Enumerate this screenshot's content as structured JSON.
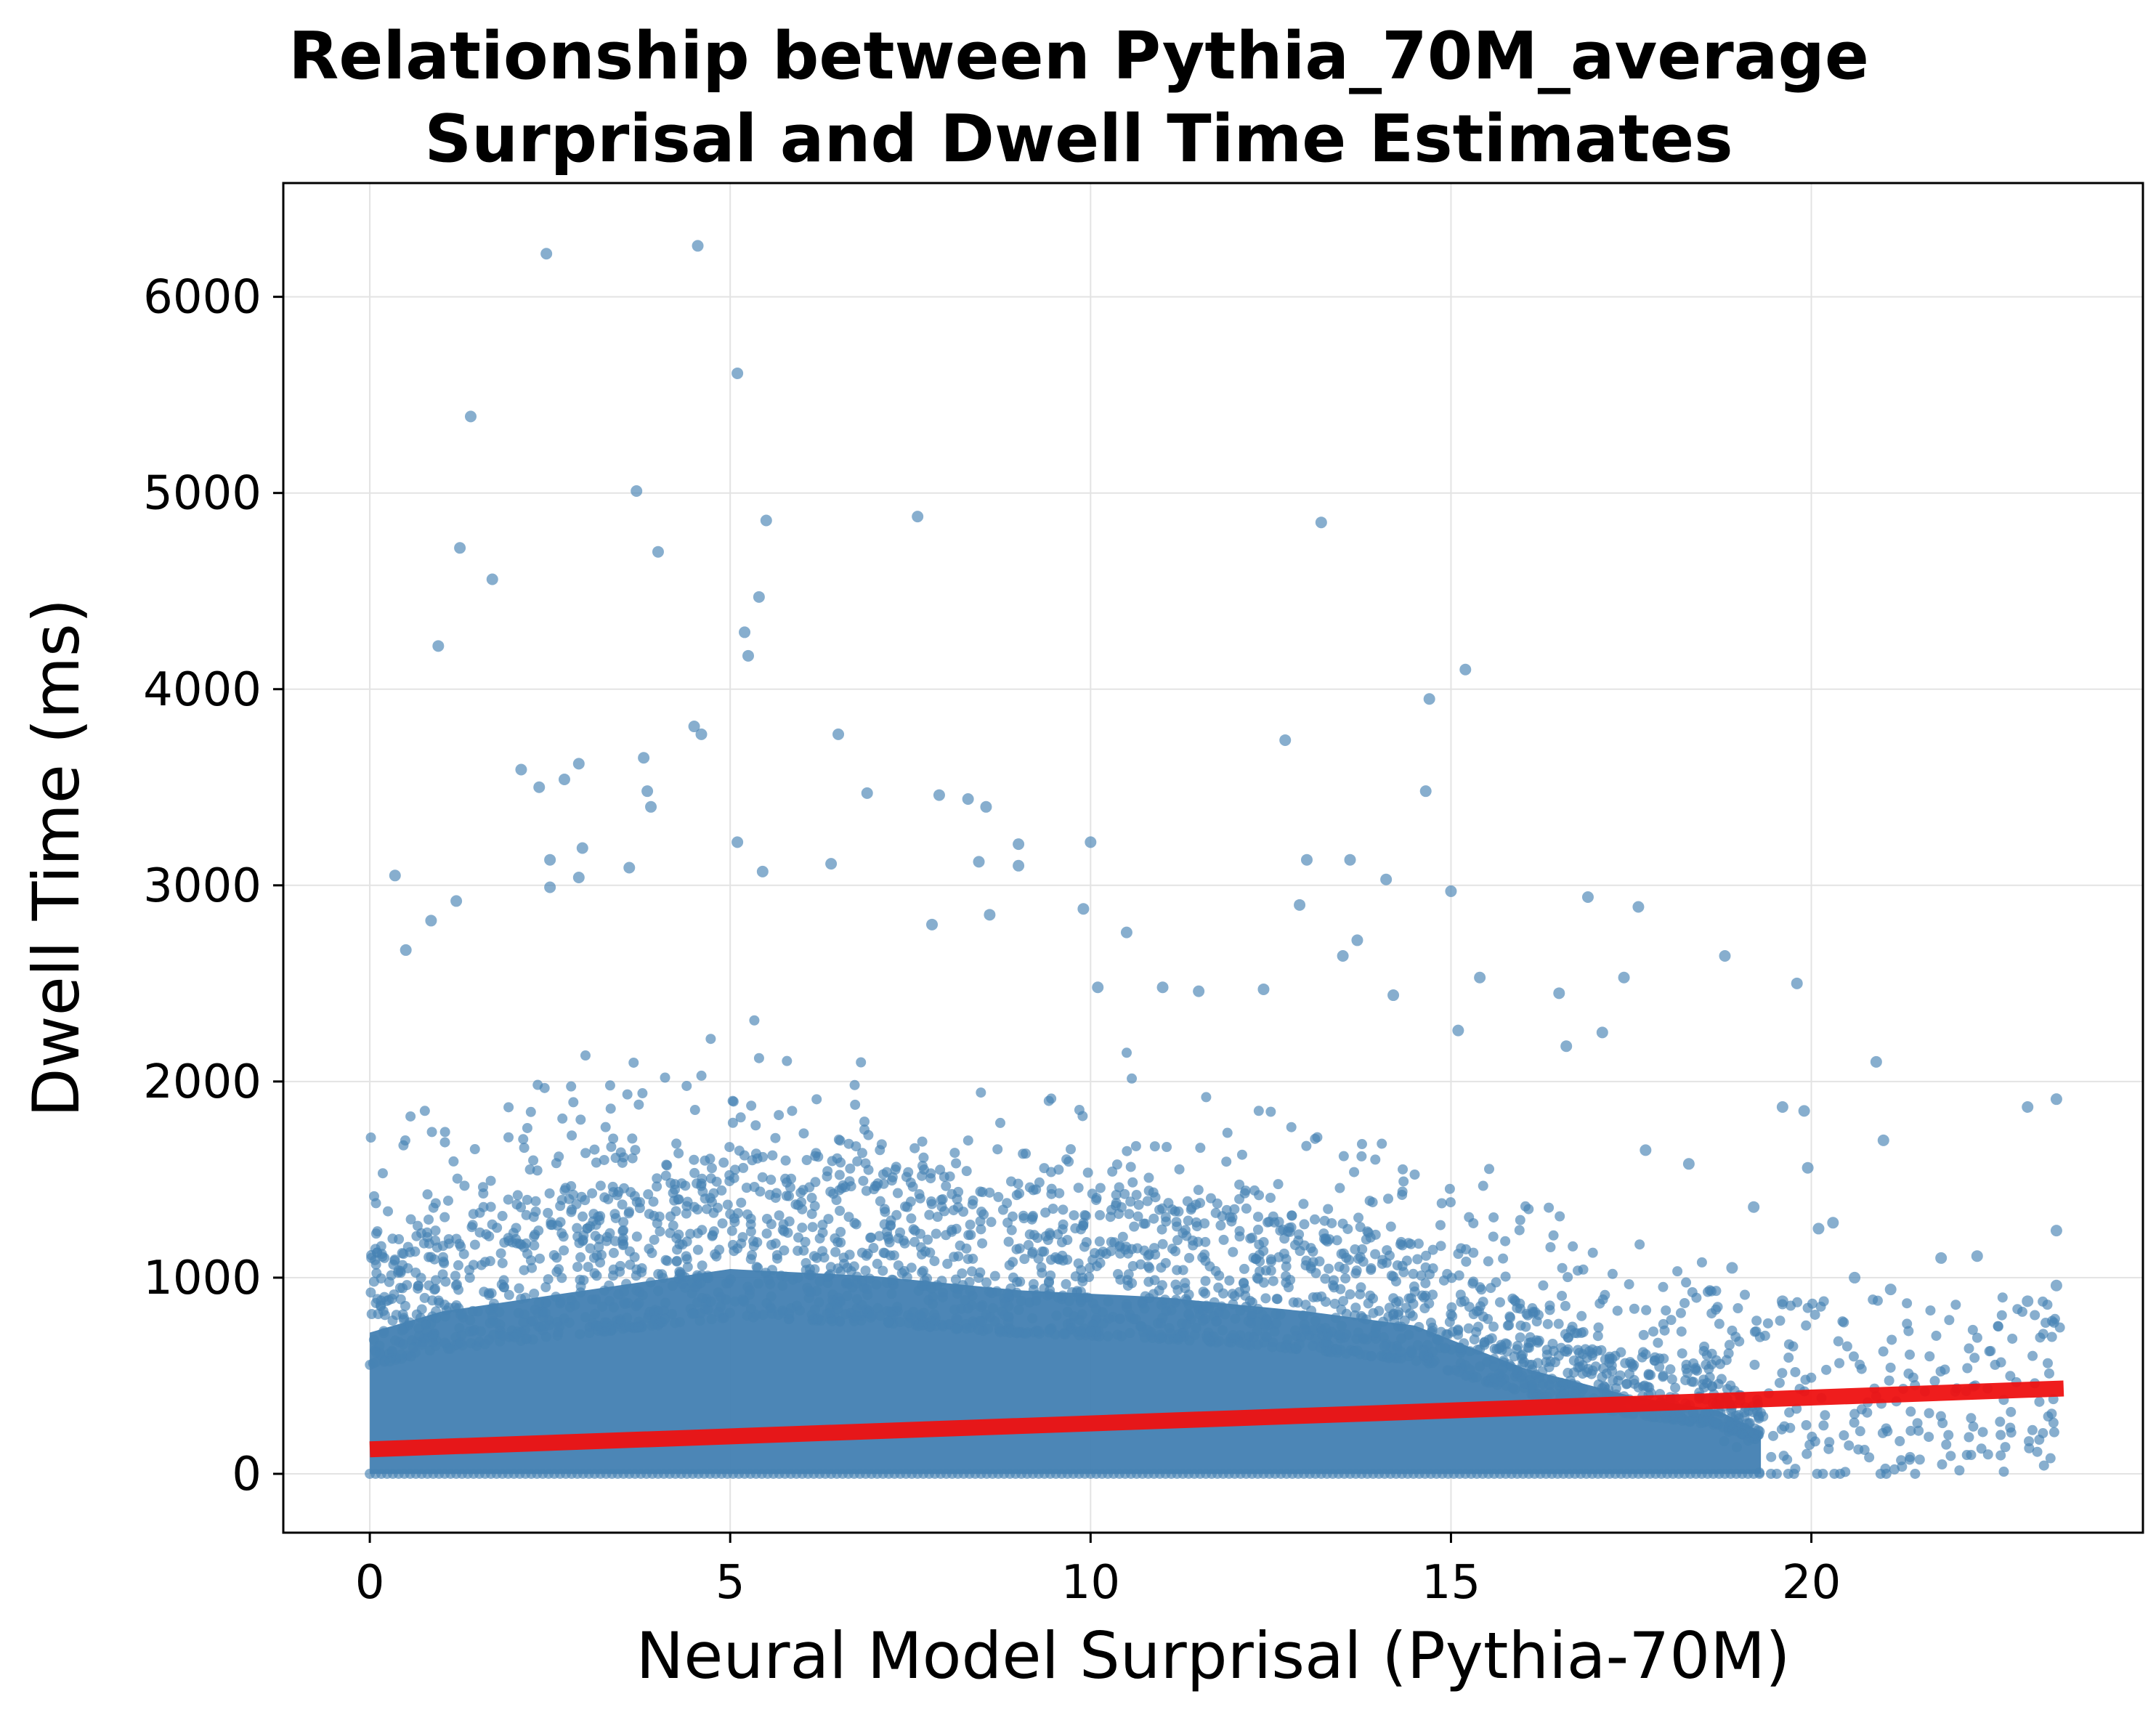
{
  "chart_data": {
    "type": "scatter",
    "title_lines": [
      "Relationship between Pythia_70M_average",
      "Surprisal and Dwell Time Estimates"
    ],
    "xlabel": "Neural Model Surprisal (Pythia-70M)",
    "ylabel": "Dwell Time (ms)",
    "xlim": [
      -1.2,
      24.6
    ],
    "ylim": [
      -300,
      6580
    ],
    "x_ticks": [
      0,
      5,
      10,
      15,
      20
    ],
    "y_ticks": [
      0,
      1000,
      2000,
      3000,
      4000,
      5000,
      6000
    ],
    "grid": true,
    "point_color": "#4682b4",
    "point_opacity": 0.65,
    "regression_color": "#ee1111",
    "regression_line": {
      "x": [
        0,
        23.5
      ],
      "y": [
        125,
        435
      ]
    },
    "dense_region": {
      "comment_free_band": true,
      "envelope": [
        {
          "x": 0,
          "y": 1000
        },
        {
          "x": 1,
          "y": 1150
        },
        {
          "x": 3,
          "y": 1300
        },
        {
          "x": 5,
          "y": 1450
        },
        {
          "x": 7,
          "y": 1400
        },
        {
          "x": 9,
          "y": 1300
        },
        {
          "x": 11,
          "y": 1250
        },
        {
          "x": 13,
          "y": 1150
        },
        {
          "x": 14.5,
          "y": 1050
        },
        {
          "x": 16,
          "y": 750
        },
        {
          "x": 17.5,
          "y": 550
        },
        {
          "x": 18.7,
          "y": 450
        },
        {
          "x": 19.3,
          "y": 300
        }
      ]
    },
    "outliers": [
      {
        "x": 2.45,
        "y": 6220
      },
      {
        "x": 4.55,
        "y": 6260
      },
      {
        "x": 5.1,
        "y": 5610
      },
      {
        "x": 1.4,
        "y": 5390
      },
      {
        "x": 3.7,
        "y": 5010
      },
      {
        "x": 5.5,
        "y": 4860
      },
      {
        "x": 7.6,
        "y": 4880
      },
      {
        "x": 13.2,
        "y": 4850
      },
      {
        "x": 1.25,
        "y": 4720
      },
      {
        "x": 4.0,
        "y": 4700
      },
      {
        "x": 1.7,
        "y": 4560
      },
      {
        "x": 5.4,
        "y": 4470
      },
      {
        "x": 5.2,
        "y": 4290
      },
      {
        "x": 0.95,
        "y": 4220
      },
      {
        "x": 5.25,
        "y": 4170
      },
      {
        "x": 15.2,
        "y": 4100
      },
      {
        "x": 14.7,
        "y": 3950
      },
      {
        "x": 4.5,
        "y": 3810
      },
      {
        "x": 4.6,
        "y": 3770
      },
      {
        "x": 6.5,
        "y": 3770
      },
      {
        "x": 12.7,
        "y": 3740
      },
      {
        "x": 3.8,
        "y": 3650
      },
      {
        "x": 2.9,
        "y": 3620
      },
      {
        "x": 2.1,
        "y": 3590
      },
      {
        "x": 2.7,
        "y": 3540
      },
      {
        "x": 2.35,
        "y": 3500
      },
      {
        "x": 3.85,
        "y": 3480
      },
      {
        "x": 14.65,
        "y": 3480
      },
      {
        "x": 6.9,
        "y": 3470
      },
      {
        "x": 7.9,
        "y": 3460
      },
      {
        "x": 8.3,
        "y": 3440
      },
      {
        "x": 8.55,
        "y": 3400
      },
      {
        "x": 3.9,
        "y": 3400
      },
      {
        "x": 5.1,
        "y": 3220
      },
      {
        "x": 10.0,
        "y": 3220
      },
      {
        "x": 9.0,
        "y": 3210
      },
      {
        "x": 2.95,
        "y": 3190
      },
      {
        "x": 2.5,
        "y": 3130
      },
      {
        "x": 13.0,
        "y": 3130
      },
      {
        "x": 13.6,
        "y": 3130
      },
      {
        "x": 8.45,
        "y": 3120
      },
      {
        "x": 6.4,
        "y": 3110
      },
      {
        "x": 9.0,
        "y": 3100
      },
      {
        "x": 3.6,
        "y": 3090
      },
      {
        "x": 5.45,
        "y": 3070
      },
      {
        "x": 0.35,
        "y": 3050
      },
      {
        "x": 2.9,
        "y": 3040
      },
      {
        "x": 14.1,
        "y": 3030
      },
      {
        "x": 2.5,
        "y": 2990
      },
      {
        "x": 15.0,
        "y": 2970
      },
      {
        "x": 16.9,
        "y": 2940
      },
      {
        "x": 1.2,
        "y": 2920
      },
      {
        "x": 12.9,
        "y": 2900
      },
      {
        "x": 17.6,
        "y": 2890
      },
      {
        "x": 9.9,
        "y": 2880
      },
      {
        "x": 8.6,
        "y": 2850
      },
      {
        "x": 0.85,
        "y": 2820
      },
      {
        "x": 7.8,
        "y": 2800
      },
      {
        "x": 13.7,
        "y": 2720
      },
      {
        "x": 10.5,
        "y": 2760
      },
      {
        "x": 0.5,
        "y": 2670
      },
      {
        "x": 18.8,
        "y": 2640
      },
      {
        "x": 13.5,
        "y": 2640
      },
      {
        "x": 15.4,
        "y": 2530
      },
      {
        "x": 17.4,
        "y": 2530
      },
      {
        "x": 19.8,
        "y": 2500
      },
      {
        "x": 16.5,
        "y": 2450
      },
      {
        "x": 14.2,
        "y": 2440
      },
      {
        "x": 12.4,
        "y": 2470
      },
      {
        "x": 11.5,
        "y": 2460
      },
      {
        "x": 11.0,
        "y": 2480
      },
      {
        "x": 10.1,
        "y": 2480
      },
      {
        "x": 15.1,
        "y": 2260
      },
      {
        "x": 17.1,
        "y": 2250
      },
      {
        "x": 16.6,
        "y": 2180
      },
      {
        "x": 20.9,
        "y": 2100
      },
      {
        "x": 19.6,
        "y": 1870
      },
      {
        "x": 19.9,
        "y": 1850
      },
      {
        "x": 23.4,
        "y": 1910
      },
      {
        "x": 23.0,
        "y": 1870
      },
      {
        "x": 21.0,
        "y": 1700
      },
      {
        "x": 17.7,
        "y": 1650
      },
      {
        "x": 18.3,
        "y": 1580
      },
      {
        "x": 19.95,
        "y": 1560
      },
      {
        "x": 20.3,
        "y": 1280
      },
      {
        "x": 20.1,
        "y": 1250
      },
      {
        "x": 23.4,
        "y": 1240
      },
      {
        "x": 22.3,
        "y": 1110
      },
      {
        "x": 21.8,
        "y": 1100
      },
      {
        "x": 19.2,
        "y": 1360
      },
      {
        "x": 18.9,
        "y": 1050
      },
      {
        "x": 20.6,
        "y": 1000
      },
      {
        "x": 23.0,
        "y": 880
      },
      {
        "x": 23.4,
        "y": 960
      },
      {
        "x": 21.1,
        "y": 940
      },
      {
        "x": 19.6,
        "y": 880
      }
    ],
    "zero_row": {
      "x_start": 0,
      "x_end": 21.5,
      "y": 0
    }
  }
}
